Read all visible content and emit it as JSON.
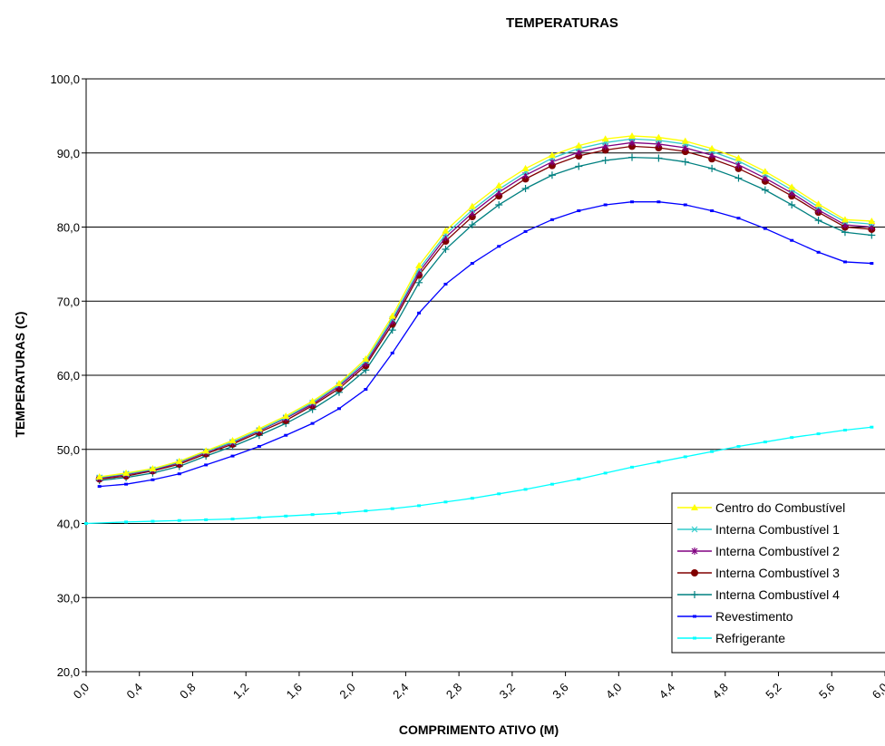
{
  "chart_data": {
    "type": "line",
    "title": "TEMPERATURAS",
    "xlabel": "COMPRIMENTO ATIVO (M)",
    "ylabel": "TEMPERATURAS (C)",
    "xlim": [
      0.0,
      6.0
    ],
    "ylim": [
      20.0,
      100.0
    ],
    "x_ticks": [
      "0,0",
      "0,4",
      "0,8",
      "1,2",
      "1,6",
      "2,0",
      "2,4",
      "2,8",
      "3,2",
      "3,6",
      "4,0",
      "4,4",
      "4,8",
      "5,2",
      "5,6",
      "6,0"
    ],
    "y_ticks": [
      "20,0",
      "30,0",
      "40,0",
      "50,0",
      "60,0",
      "70,0",
      "80,0",
      "90,0",
      "100,0"
    ],
    "grid": "horizontal",
    "legend_position": "right",
    "series": [
      {
        "name": "Centro do Combustível",
        "color": "#ffff00",
        "marker": "triangle",
        "x": [
          0.1,
          0.3,
          0.5,
          0.7,
          0.9,
          1.1,
          1.3,
          1.5,
          1.7,
          1.9,
          2.1,
          2.3,
          2.5,
          2.7,
          2.9,
          3.1,
          3.3,
          3.5,
          3.7,
          3.9,
          4.1,
          4.3,
          4.5,
          4.7,
          4.9,
          5.1,
          5.3,
          5.5,
          5.7,
          5.9
        ],
        "values": [
          46.3,
          46.8,
          47.4,
          48.4,
          49.8,
          51.2,
          52.8,
          54.5,
          56.5,
          58.9,
          62.2,
          68.0,
          74.8,
          79.5,
          82.8,
          85.6,
          87.9,
          89.7,
          91.0,
          91.9,
          92.3,
          92.1,
          91.6,
          90.6,
          89.3,
          87.5,
          85.4,
          83.1,
          81.0,
          80.8
        ]
      },
      {
        "name": "Interna Combustível 1",
        "color": "#33cccc",
        "marker": "x",
        "x": [
          0.1,
          0.3,
          0.5,
          0.7,
          0.9,
          1.1,
          1.3,
          1.5,
          1.7,
          1.9,
          2.1,
          2.3,
          2.5,
          2.7,
          2.9,
          3.1,
          3.3,
          3.5,
          3.7,
          3.9,
          4.1,
          4.3,
          4.5,
          4.7,
          4.9,
          5.1,
          5.3,
          5.5,
          5.7,
          5.9
        ],
        "values": [
          46.2,
          46.7,
          47.3,
          48.3,
          49.7,
          51.0,
          52.6,
          54.3,
          56.3,
          58.7,
          61.9,
          67.6,
          74.3,
          79.0,
          82.3,
          85.1,
          87.4,
          89.3,
          90.6,
          91.4,
          91.9,
          91.7,
          91.2,
          90.2,
          88.9,
          87.1,
          85.0,
          82.7,
          80.7,
          80.4
        ]
      },
      {
        "name": "Interna Combustível 2",
        "color": "#800080",
        "marker": "star",
        "x": [
          0.1,
          0.3,
          0.5,
          0.7,
          0.9,
          1.1,
          1.3,
          1.5,
          1.7,
          1.9,
          2.1,
          2.3,
          2.5,
          2.7,
          2.9,
          3.1,
          3.3,
          3.5,
          3.7,
          3.9,
          4.1,
          4.3,
          4.5,
          4.7,
          4.9,
          5.1,
          5.3,
          5.5,
          5.7,
          5.9
        ],
        "values": [
          46.1,
          46.6,
          47.2,
          48.2,
          49.6,
          50.9,
          52.5,
          54.2,
          56.1,
          58.5,
          61.6,
          67.3,
          73.9,
          78.6,
          81.9,
          84.7,
          87.0,
          88.8,
          90.1,
          90.9,
          91.4,
          91.2,
          90.7,
          89.7,
          88.4,
          86.6,
          84.6,
          82.3,
          80.3,
          80.0
        ]
      },
      {
        "name": "Interna Combustível 3",
        "color": "#800000",
        "marker": "circle",
        "x": [
          0.1,
          0.3,
          0.5,
          0.7,
          0.9,
          1.1,
          1.3,
          1.5,
          1.7,
          1.9,
          2.1,
          2.3,
          2.5,
          2.7,
          2.9,
          3.1,
          3.3,
          3.5,
          3.7,
          3.9,
          4.1,
          4.3,
          4.5,
          4.7,
          4.9,
          5.1,
          5.3,
          5.5,
          5.7,
          5.9
        ],
        "values": [
          46.0,
          46.4,
          47.1,
          48.0,
          49.4,
          50.7,
          52.3,
          53.9,
          55.9,
          58.2,
          61.3,
          66.9,
          73.5,
          78.1,
          81.4,
          84.2,
          86.5,
          88.3,
          89.6,
          90.4,
          90.9,
          90.7,
          90.2,
          89.2,
          87.9,
          86.2,
          84.2,
          82.0,
          80.0,
          79.7
        ]
      },
      {
        "name": "Interna Combustível 4",
        "color": "#008080",
        "marker": "plus",
        "x": [
          0.1,
          0.3,
          0.5,
          0.7,
          0.9,
          1.1,
          1.3,
          1.5,
          1.7,
          1.9,
          2.1,
          2.3,
          2.5,
          2.7,
          2.9,
          3.1,
          3.3,
          3.5,
          3.7,
          3.9,
          4.1,
          4.3,
          4.5,
          4.7,
          4.9,
          5.1,
          5.3,
          5.5,
          5.7,
          5.9
        ],
        "values": [
          45.8,
          46.2,
          46.8,
          47.7,
          49.1,
          50.4,
          51.9,
          53.5,
          55.4,
          57.7,
          60.7,
          66.1,
          72.5,
          77.0,
          80.3,
          83.0,
          85.2,
          87.0,
          88.2,
          89.0,
          89.4,
          89.3,
          88.8,
          87.9,
          86.6,
          85.0,
          83.0,
          80.9,
          79.3,
          78.9
        ]
      },
      {
        "name": "Revestimento",
        "color": "#0000ff",
        "marker": "dash",
        "x": [
          0.1,
          0.3,
          0.5,
          0.7,
          0.9,
          1.1,
          1.3,
          1.5,
          1.7,
          1.9,
          2.1,
          2.3,
          2.5,
          2.7,
          2.9,
          3.1,
          3.3,
          3.5,
          3.7,
          3.9,
          4.1,
          4.3,
          4.5,
          4.7,
          4.9,
          5.1,
          5.3,
          5.5,
          5.7,
          5.9
        ],
        "values": [
          45.0,
          45.3,
          45.9,
          46.7,
          47.9,
          49.1,
          50.4,
          51.9,
          53.5,
          55.5,
          58.1,
          63.0,
          68.4,
          72.3,
          75.1,
          77.4,
          79.4,
          81.0,
          82.2,
          83.0,
          83.4,
          83.4,
          83.0,
          82.2,
          81.2,
          79.8,
          78.2,
          76.6,
          75.3,
          75.1
        ]
      },
      {
        "name": "Refrigerante",
        "color": "#00ffff",
        "marker": "dash",
        "x": [
          0.0,
          0.3,
          0.5,
          0.7,
          0.9,
          1.1,
          1.3,
          1.5,
          1.7,
          1.9,
          2.1,
          2.3,
          2.5,
          2.7,
          2.9,
          3.1,
          3.3,
          3.5,
          3.7,
          3.9,
          4.1,
          4.3,
          4.5,
          4.7,
          4.9,
          5.1,
          5.3,
          5.5,
          5.7,
          5.9,
          6.1
        ],
        "values": [
          40.0,
          40.2,
          40.3,
          40.4,
          40.5,
          40.6,
          40.8,
          41.0,
          41.2,
          41.4,
          41.7,
          42.0,
          42.4,
          42.9,
          43.4,
          44.0,
          44.6,
          45.3,
          46.0,
          46.8,
          47.6,
          48.3,
          49.0,
          49.7,
          50.4,
          51.0,
          51.6,
          52.1,
          52.6,
          53.0,
          53.4
        ]
      }
    ]
  }
}
